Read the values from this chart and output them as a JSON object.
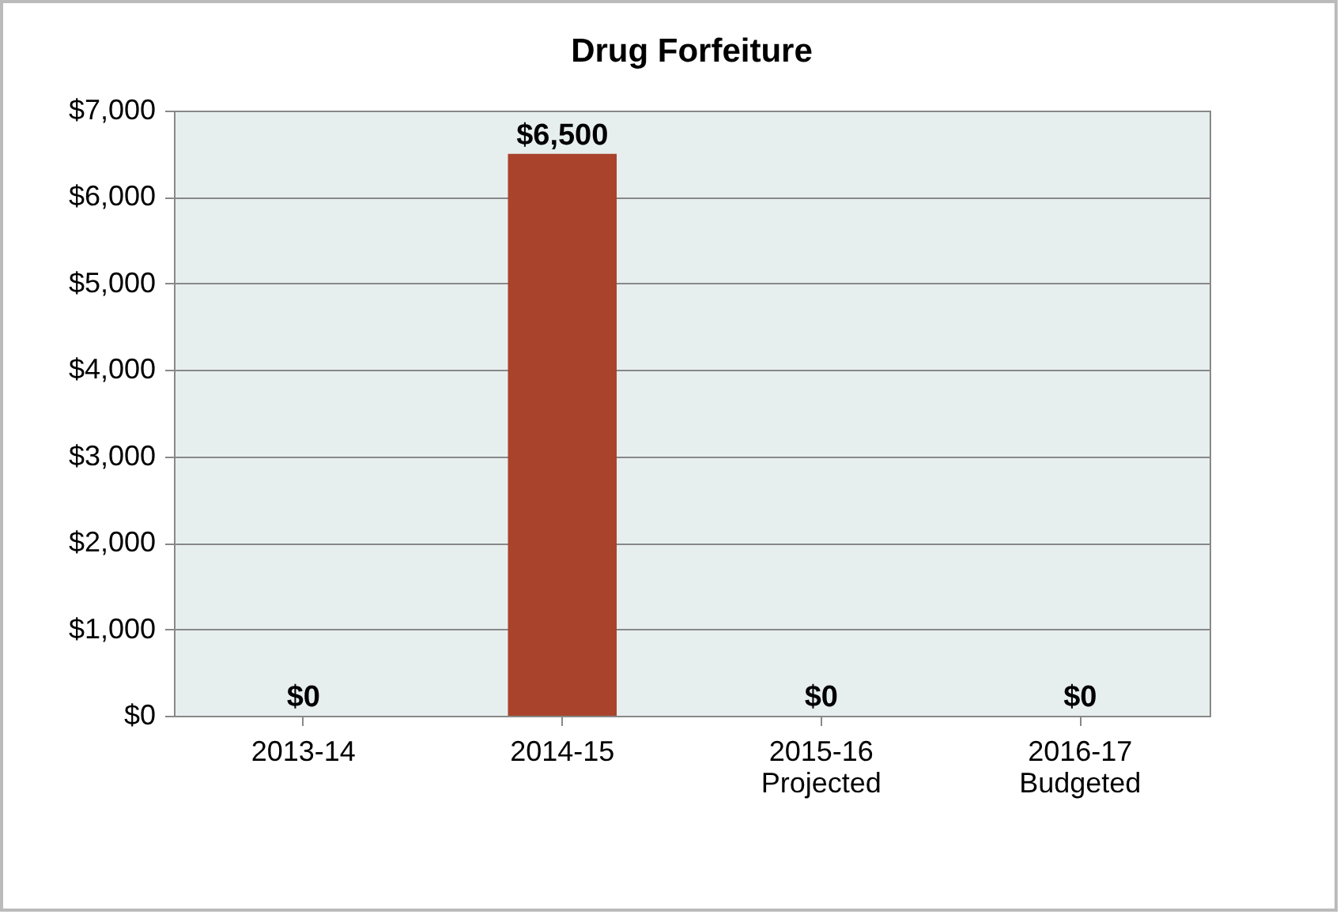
{
  "chart_data": {
    "type": "bar",
    "title": "Drug Forfeiture",
    "categories": [
      "2013-14",
      "2014-15",
      "2015-16\nProjected",
      "2016-17\nBudgeted"
    ],
    "values": [
      0,
      6500,
      0,
      0
    ],
    "value_labels": [
      "$0",
      "$6,500",
      "$0",
      "$0"
    ],
    "color": "#a9432c",
    "ylim": [
      0,
      7000
    ],
    "yticks": [
      {
        "value": 0,
        "label": "$0"
      },
      {
        "value": 1000,
        "label": "$1,000"
      },
      {
        "value": 2000,
        "label": "$2,000"
      },
      {
        "value": 3000,
        "label": "$3,000"
      },
      {
        "value": 4000,
        "label": "$4,000"
      },
      {
        "value": 5000,
        "label": "$5,000"
      },
      {
        "value": 6000,
        "label": "$6,000"
      },
      {
        "value": 7000,
        "label": "$7,000"
      }
    ],
    "grid": "y"
  }
}
